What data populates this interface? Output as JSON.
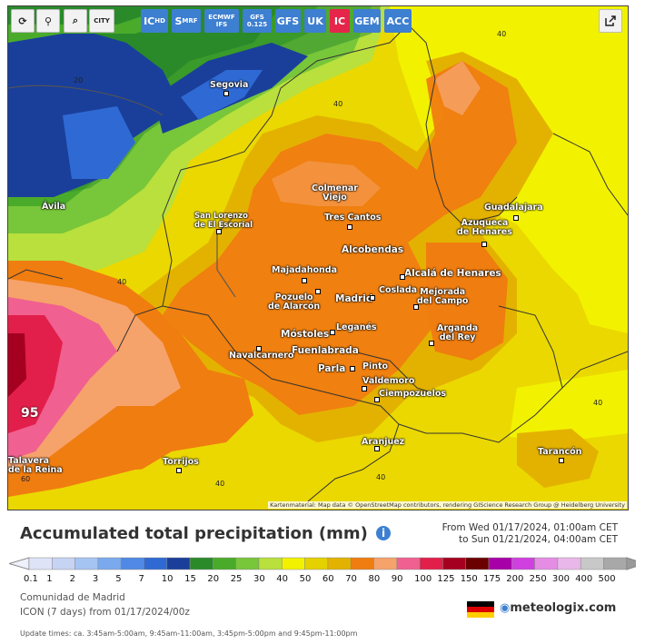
{
  "toolbar": {
    "tools": [
      {
        "icon": "refresh-icon",
        "glyph": "⟳"
      },
      {
        "icon": "location-pin-icon",
        "glyph": "⚲"
      },
      {
        "icon": "zoom-icon",
        "glyph": "⌕"
      },
      {
        "icon": "city-toggle-icon",
        "glyph": "CITY"
      }
    ],
    "models": [
      {
        "label": "IC",
        "sub": "HD"
      },
      {
        "label": "S",
        "sub": "MRF"
      },
      {
        "label": "ECMWF",
        "sub": "IFS"
      },
      {
        "label": "GFS",
        "sub": "0.125"
      },
      {
        "label": "GFS",
        "sub": ""
      },
      {
        "label": "UK",
        "sub": ""
      },
      {
        "label": "IC",
        "sub": "",
        "active": true
      },
      {
        "label": "GEM",
        "sub": ""
      },
      {
        "label": "ACC",
        "sub": ""
      }
    ],
    "share_icon": "share-icon"
  },
  "map": {
    "cities": [
      {
        "name": "Segovia"
      },
      {
        "name": "Ávila"
      },
      {
        "name": "Colmenar\nViejo"
      },
      {
        "name": "Tres Cantos"
      },
      {
        "name": "San Lorenzo\nde El Escorial"
      },
      {
        "name": "Guadalajara"
      },
      {
        "name": "Azuqueca\nde Henares"
      },
      {
        "name": "Alcobendas"
      },
      {
        "name": "Majadahonda"
      },
      {
        "name": "Alcalá de Henares"
      },
      {
        "name": "Coslada"
      },
      {
        "name": "Mejorada\ndel Campo"
      },
      {
        "name": "Madrid"
      },
      {
        "name": "Pozuelo\nde Alarcón"
      },
      {
        "name": "Arganda\ndel Rey"
      },
      {
        "name": "Leganés"
      },
      {
        "name": "Móstoles"
      },
      {
        "name": "Fuenlabrada"
      },
      {
        "name": "Navalcarnero"
      },
      {
        "name": "Parla"
      },
      {
        "name": "Pinto"
      },
      {
        "name": "Valdemoro"
      },
      {
        "name": "Ciempozuelos"
      },
      {
        "name": "Aranjuez"
      },
      {
        "name": "Torrijos"
      },
      {
        "name": "Tarancón"
      },
      {
        "name": "Talavera\nde la Reina"
      }
    ],
    "isolines": [
      "20",
      "40",
      "40",
      "40",
      "40",
      "40",
      "40",
      "60"
    ],
    "max_value": "95",
    "attribution": "Kartenmaterial: Map data © OpenStreetMap contributors, rendering GIScience Research Group @ Heidelberg University"
  },
  "title": "Accumulated total precipitation (mm)",
  "period": {
    "from": "From Wed 01/17/2024, 01:00am CET",
    "to": "to Sun 01/21/2024, 04:00am CET"
  },
  "legend": {
    "values": [
      "0.1",
      "1",
      "2",
      "3",
      "5",
      "7",
      "10",
      "15",
      "20",
      "25",
      "30",
      "40",
      "50",
      "60",
      "70",
      "80",
      "90",
      "100",
      "125",
      "150",
      "175",
      "200",
      "250",
      "300",
      "400",
      "500"
    ],
    "colors": [
      "#dfe3f7",
      "#c7d3f3",
      "#a6c4f2",
      "#7aa9ee",
      "#5089e6",
      "#2f69d4",
      "#1a3f9a",
      "#2a8a2a",
      "#4aab2a",
      "#78c63a",
      "#b9e03c",
      "#f2f200",
      "#e5d100",
      "#e3b200",
      "#f07d10",
      "#f6a26b",
      "#f06090",
      "#e21e4a",
      "#a5001f",
      "#6b0000",
      "#a800a8",
      "#d040e0",
      "#e58de5",
      "#eab7ea",
      "#c8c8c8",
      "#a8a8a8"
    ]
  },
  "region": "Comunidad de Madrid",
  "model_run": "ICON  (7 days)  from 01/17/2024/00z",
  "update_times": "Update times: ca. 3:45am-5:00am, 9:45am-11:00am, 3:45pm-5:00pm and 9:45pm-11:00pm",
  "brand": "meteologix.com"
}
